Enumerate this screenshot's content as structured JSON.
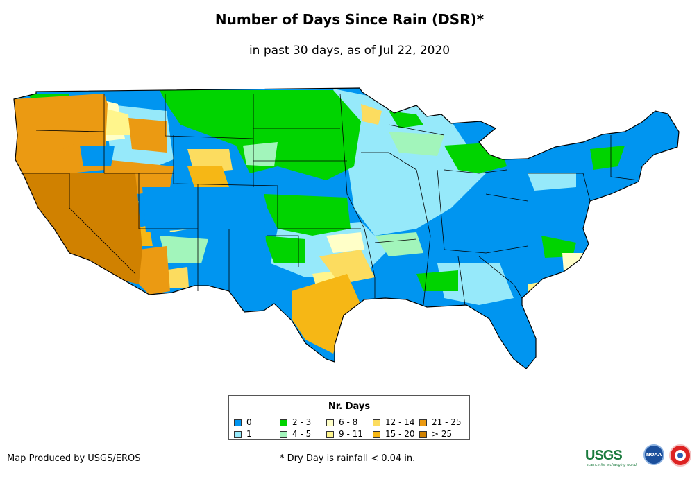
{
  "title": "Number of Days Since Rain (DSR)*",
  "subtitle": "in past 30 days, as of Jul 22, 2020",
  "legend": {
    "title": "Nr. Days",
    "items": [
      {
        "label": "0",
        "color": "#0095f0"
      },
      {
        "label": "1",
        "color": "#96e9fa"
      },
      {
        "label": "2 - 3",
        "color": "#00d400"
      },
      {
        "label": "4 - 5",
        "color": "#a2f5bb"
      },
      {
        "label": "6 - 8",
        "color": "#ffffc8"
      },
      {
        "label": "9 - 11",
        "color": "#fff58c"
      },
      {
        "label": "12 - 14",
        "color": "#fcdc5f"
      },
      {
        "label": "15 - 20",
        "color": "#f6b715"
      },
      {
        "label": "21 - 25",
        "color": "#eb9a12"
      },
      {
        "label": "> 25",
        "color": "#d08100"
      }
    ]
  },
  "footer": {
    "produced_by": "Map Produced by USGS/EROS",
    "note": "* Dry Day is rainfall < 0.04 in."
  },
  "logos": {
    "usgs": "USGS",
    "usgs_tagline": "science for a changing world",
    "noaa": "NOAA"
  }
}
